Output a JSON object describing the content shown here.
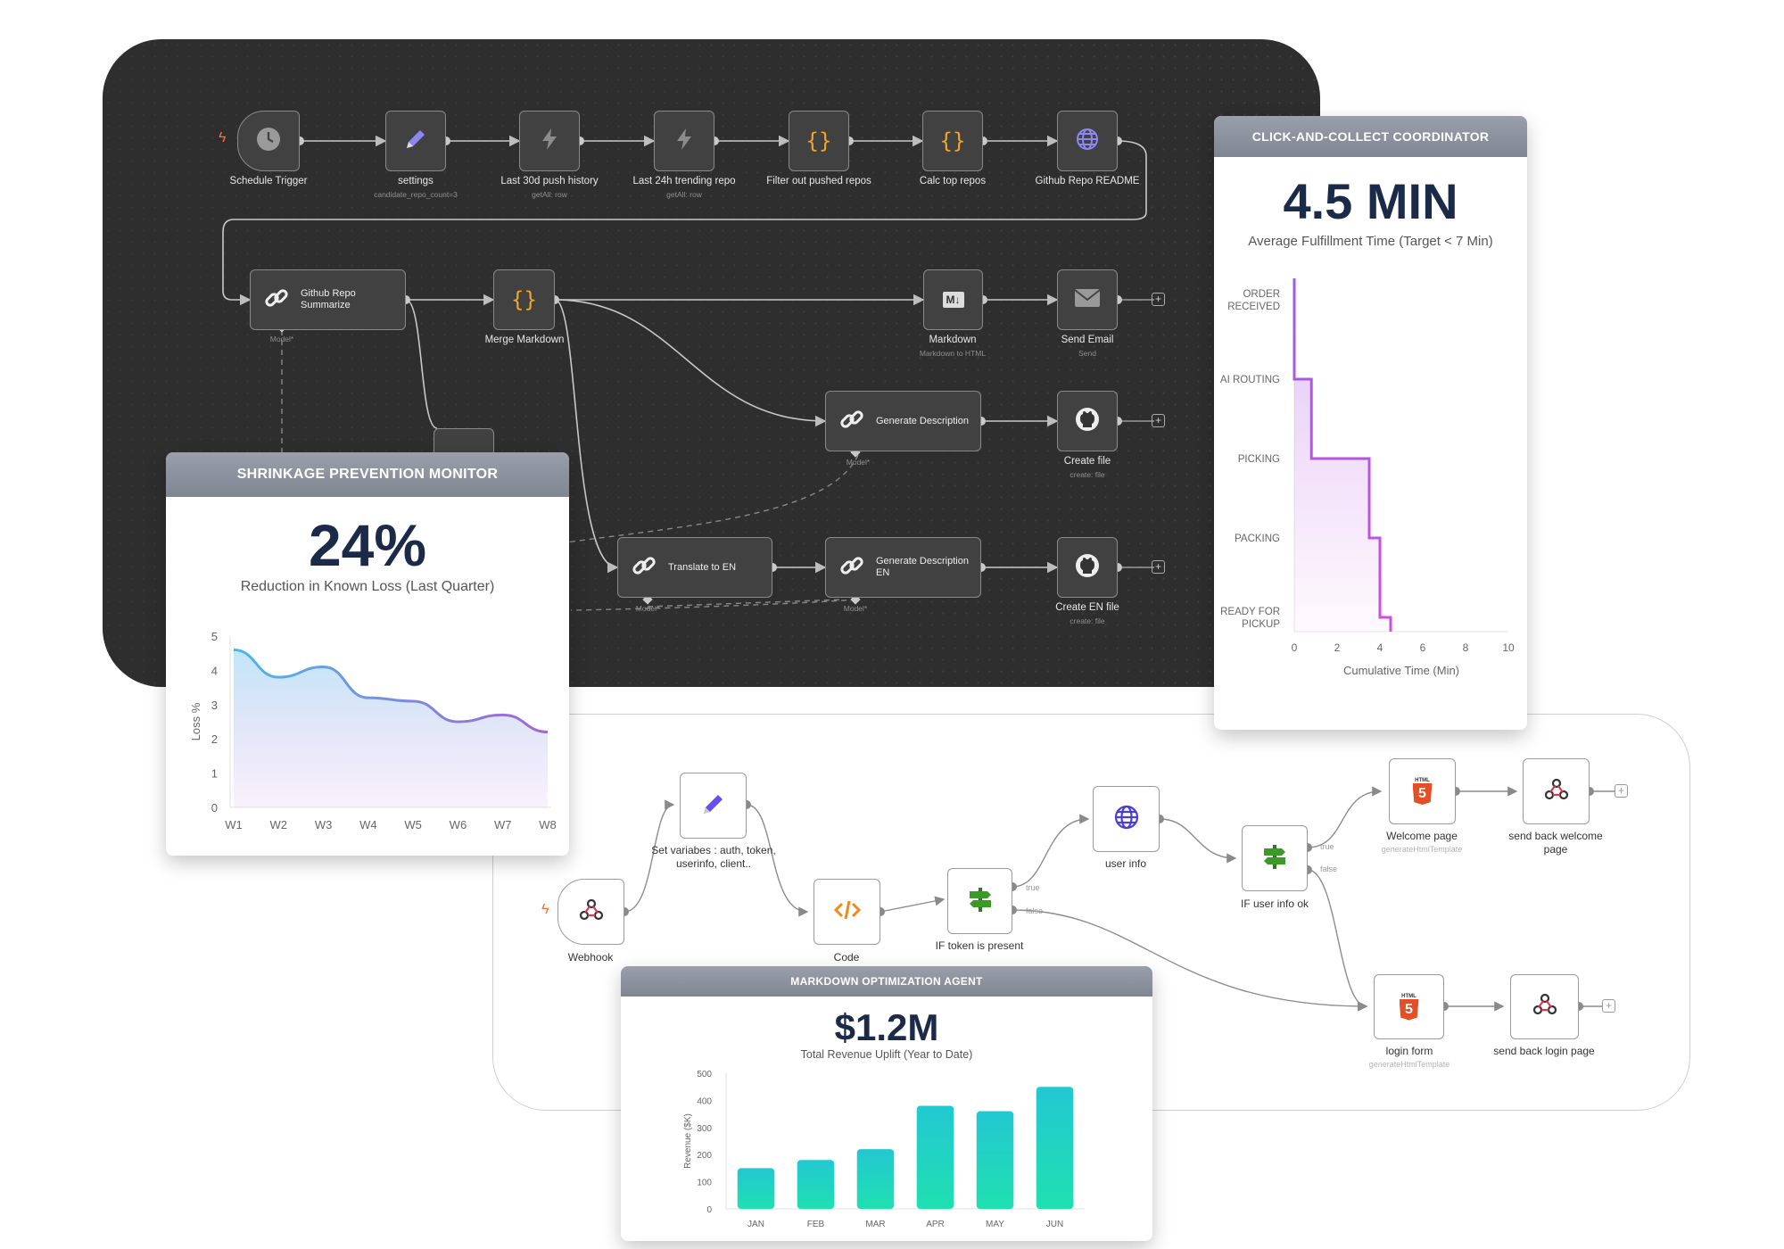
{
  "top_workflow": {
    "nodes": [
      {
        "label": "Schedule Trigger",
        "sub": ""
      },
      {
        "label": "settings",
        "sub": "candidate_repo_count=3"
      },
      {
        "label": "Last 30d push history",
        "sub": "getAll: row"
      },
      {
        "label": "Last 24h trending repo",
        "sub": "getAll: row"
      },
      {
        "label": "Filter out pushed repos",
        "sub": ""
      },
      {
        "label": "Calc top repos",
        "sub": ""
      },
      {
        "label": "Github Repo README",
        "sub": ""
      },
      {
        "label": "Github Repo Summarize",
        "sub": "Model*"
      },
      {
        "label": "Merge Markdown",
        "sub": ""
      },
      {
        "label": "Markdown",
        "sub": "Markdown to HTML"
      },
      {
        "label": "Send Email",
        "sub": "Send"
      },
      {
        "label": "Generate Description",
        "sub": "Model*"
      },
      {
        "label": "Create file",
        "sub": "create: file"
      },
      {
        "label": "Translate to EN",
        "sub": "Model*"
      },
      {
        "label": "Generate Description EN",
        "sub": "Model*"
      },
      {
        "label": "Create EN file",
        "sub": "create: file"
      }
    ],
    "code_glyph": "{}",
    "markdown_glyph": "M↓"
  },
  "bottom_workflow": {
    "nodes": [
      {
        "label": "Webhook",
        "sub": ""
      },
      {
        "label": "Set variabes : auth, token, userinfo, client..",
        "sub": ""
      },
      {
        "label": "Code",
        "sub": ""
      },
      {
        "label": "IF token is present",
        "sub": ""
      },
      {
        "label": "user info",
        "sub": ""
      },
      {
        "label": "IF user info ok",
        "sub": ""
      },
      {
        "label": "Welcome page",
        "sub": "generateHtmlTemplate"
      },
      {
        "label": "send back welcome page",
        "sub": ""
      },
      {
        "label": "login form",
        "sub": "generateHtmlTemplate"
      },
      {
        "label": "send back login page",
        "sub": ""
      }
    ],
    "branch_true": "true",
    "branch_false": "false",
    "html_badge": "HTML",
    "html_glyph": "5"
  },
  "plus_glyph": "+",
  "cards": {
    "shrinkage": {
      "title": "SHRINKAGE PREVENTION MONITOR",
      "metric": "24%",
      "caption": "Reduction in Known Loss (Last Quarter)"
    },
    "click_collect": {
      "title": "CLICK-AND-COLLECT COORDINATOR",
      "metric": "4.5 MIN",
      "caption": "Average Fulfillment Time (Target < 7 Min)"
    },
    "markdown_agent": {
      "title": "MARKDOWN OPTIMIZATION AGENT",
      "metric": "$1.2M",
      "caption": "Total Revenue Uplift (Year to Date)"
    }
  },
  "chart_data": [
    {
      "type": "area",
      "ylabel": "Loss %",
      "xlabel": "",
      "categories": [
        "W1",
        "W2",
        "W3",
        "W4",
        "W5",
        "W6",
        "W7",
        "W8"
      ],
      "values": [
        4.6,
        3.8,
        4.1,
        3.2,
        3.1,
        2.5,
        2.7,
        2.2
      ],
      "yticks": [
        "0",
        "1",
        "2",
        "3",
        "4",
        "5"
      ],
      "ylim": [
        0,
        5
      ],
      "colors": {
        "start": "#4bb8e8",
        "end": "#a365d8"
      }
    },
    {
      "type": "line",
      "subtype": "step",
      "xlabel": "Cumulative Time (Min)",
      "categories": [
        "ORDER RECEIVED",
        "AI ROUTING",
        "PICKING",
        "PACKING",
        "READY FOR PICKUP"
      ],
      "category_lines": [
        [
          "ORDER",
          "RECEIVED"
        ],
        [
          "AI ROUTING"
        ],
        [
          "PICKING"
        ],
        [
          "PACKING"
        ],
        [
          "READY FOR",
          "PICKUP"
        ]
      ],
      "x": [
        0,
        0.8,
        3.5,
        4.0,
        4.5
      ],
      "xticks": [
        "0",
        "2",
        "4",
        "6",
        "8",
        "10"
      ],
      "xlim": [
        0,
        10
      ],
      "colors": {
        "start": "#9b5de5",
        "end": "#d14de0"
      }
    },
    {
      "type": "bar",
      "ylabel": "Revenue ($K)",
      "xlabel": "",
      "categories": [
        "JAN",
        "FEB",
        "MAR",
        "APR",
        "MAY",
        "JUN"
      ],
      "values": [
        150,
        180,
        220,
        380,
        360,
        450
      ],
      "yticks": [
        "0",
        "100",
        "200",
        "300",
        "400",
        "500"
      ],
      "ylim": [
        0,
        500
      ],
      "colors": {
        "top": "#22c8d2",
        "bottom": "#1fe0b0"
      }
    }
  ]
}
